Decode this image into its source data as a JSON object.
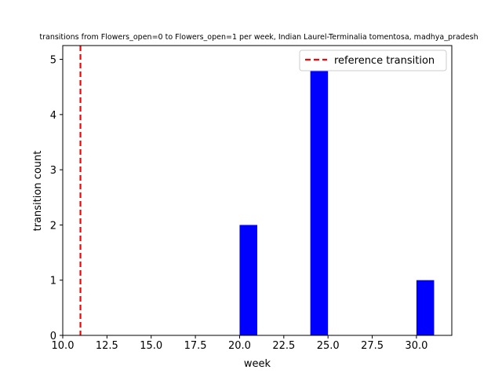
{
  "chart_data": {
    "type": "bar",
    "title": "transitions from Flowers_open=0 to Flowers_open=1 per week, Indian Laurel-Terminalia tomentosa, madhya_pradesh",
    "xlabel": "week",
    "ylabel": "transition count",
    "xlim": [
      10,
      32
    ],
    "ylim": [
      0,
      5.25
    ],
    "x_ticks": [
      "10.0",
      "12.5",
      "15.0",
      "17.5",
      "20.0",
      "22.5",
      "25.0",
      "27.5",
      "30.0"
    ],
    "y_ticks": [
      "0",
      "1",
      "2",
      "3",
      "4",
      "5"
    ],
    "bar_color": "#0000ff",
    "bars": [
      {
        "x_start": 20,
        "x_end": 21,
        "value": 2
      },
      {
        "x_start": 24,
        "x_end": 25,
        "value": 5
      },
      {
        "x_start": 30,
        "x_end": 31,
        "value": 1
      }
    ],
    "reference_line": {
      "x": 11,
      "label": "reference transition",
      "color": "#ff0000",
      "style": "dashed"
    },
    "legend_position": "top-right",
    "grid": false
  }
}
